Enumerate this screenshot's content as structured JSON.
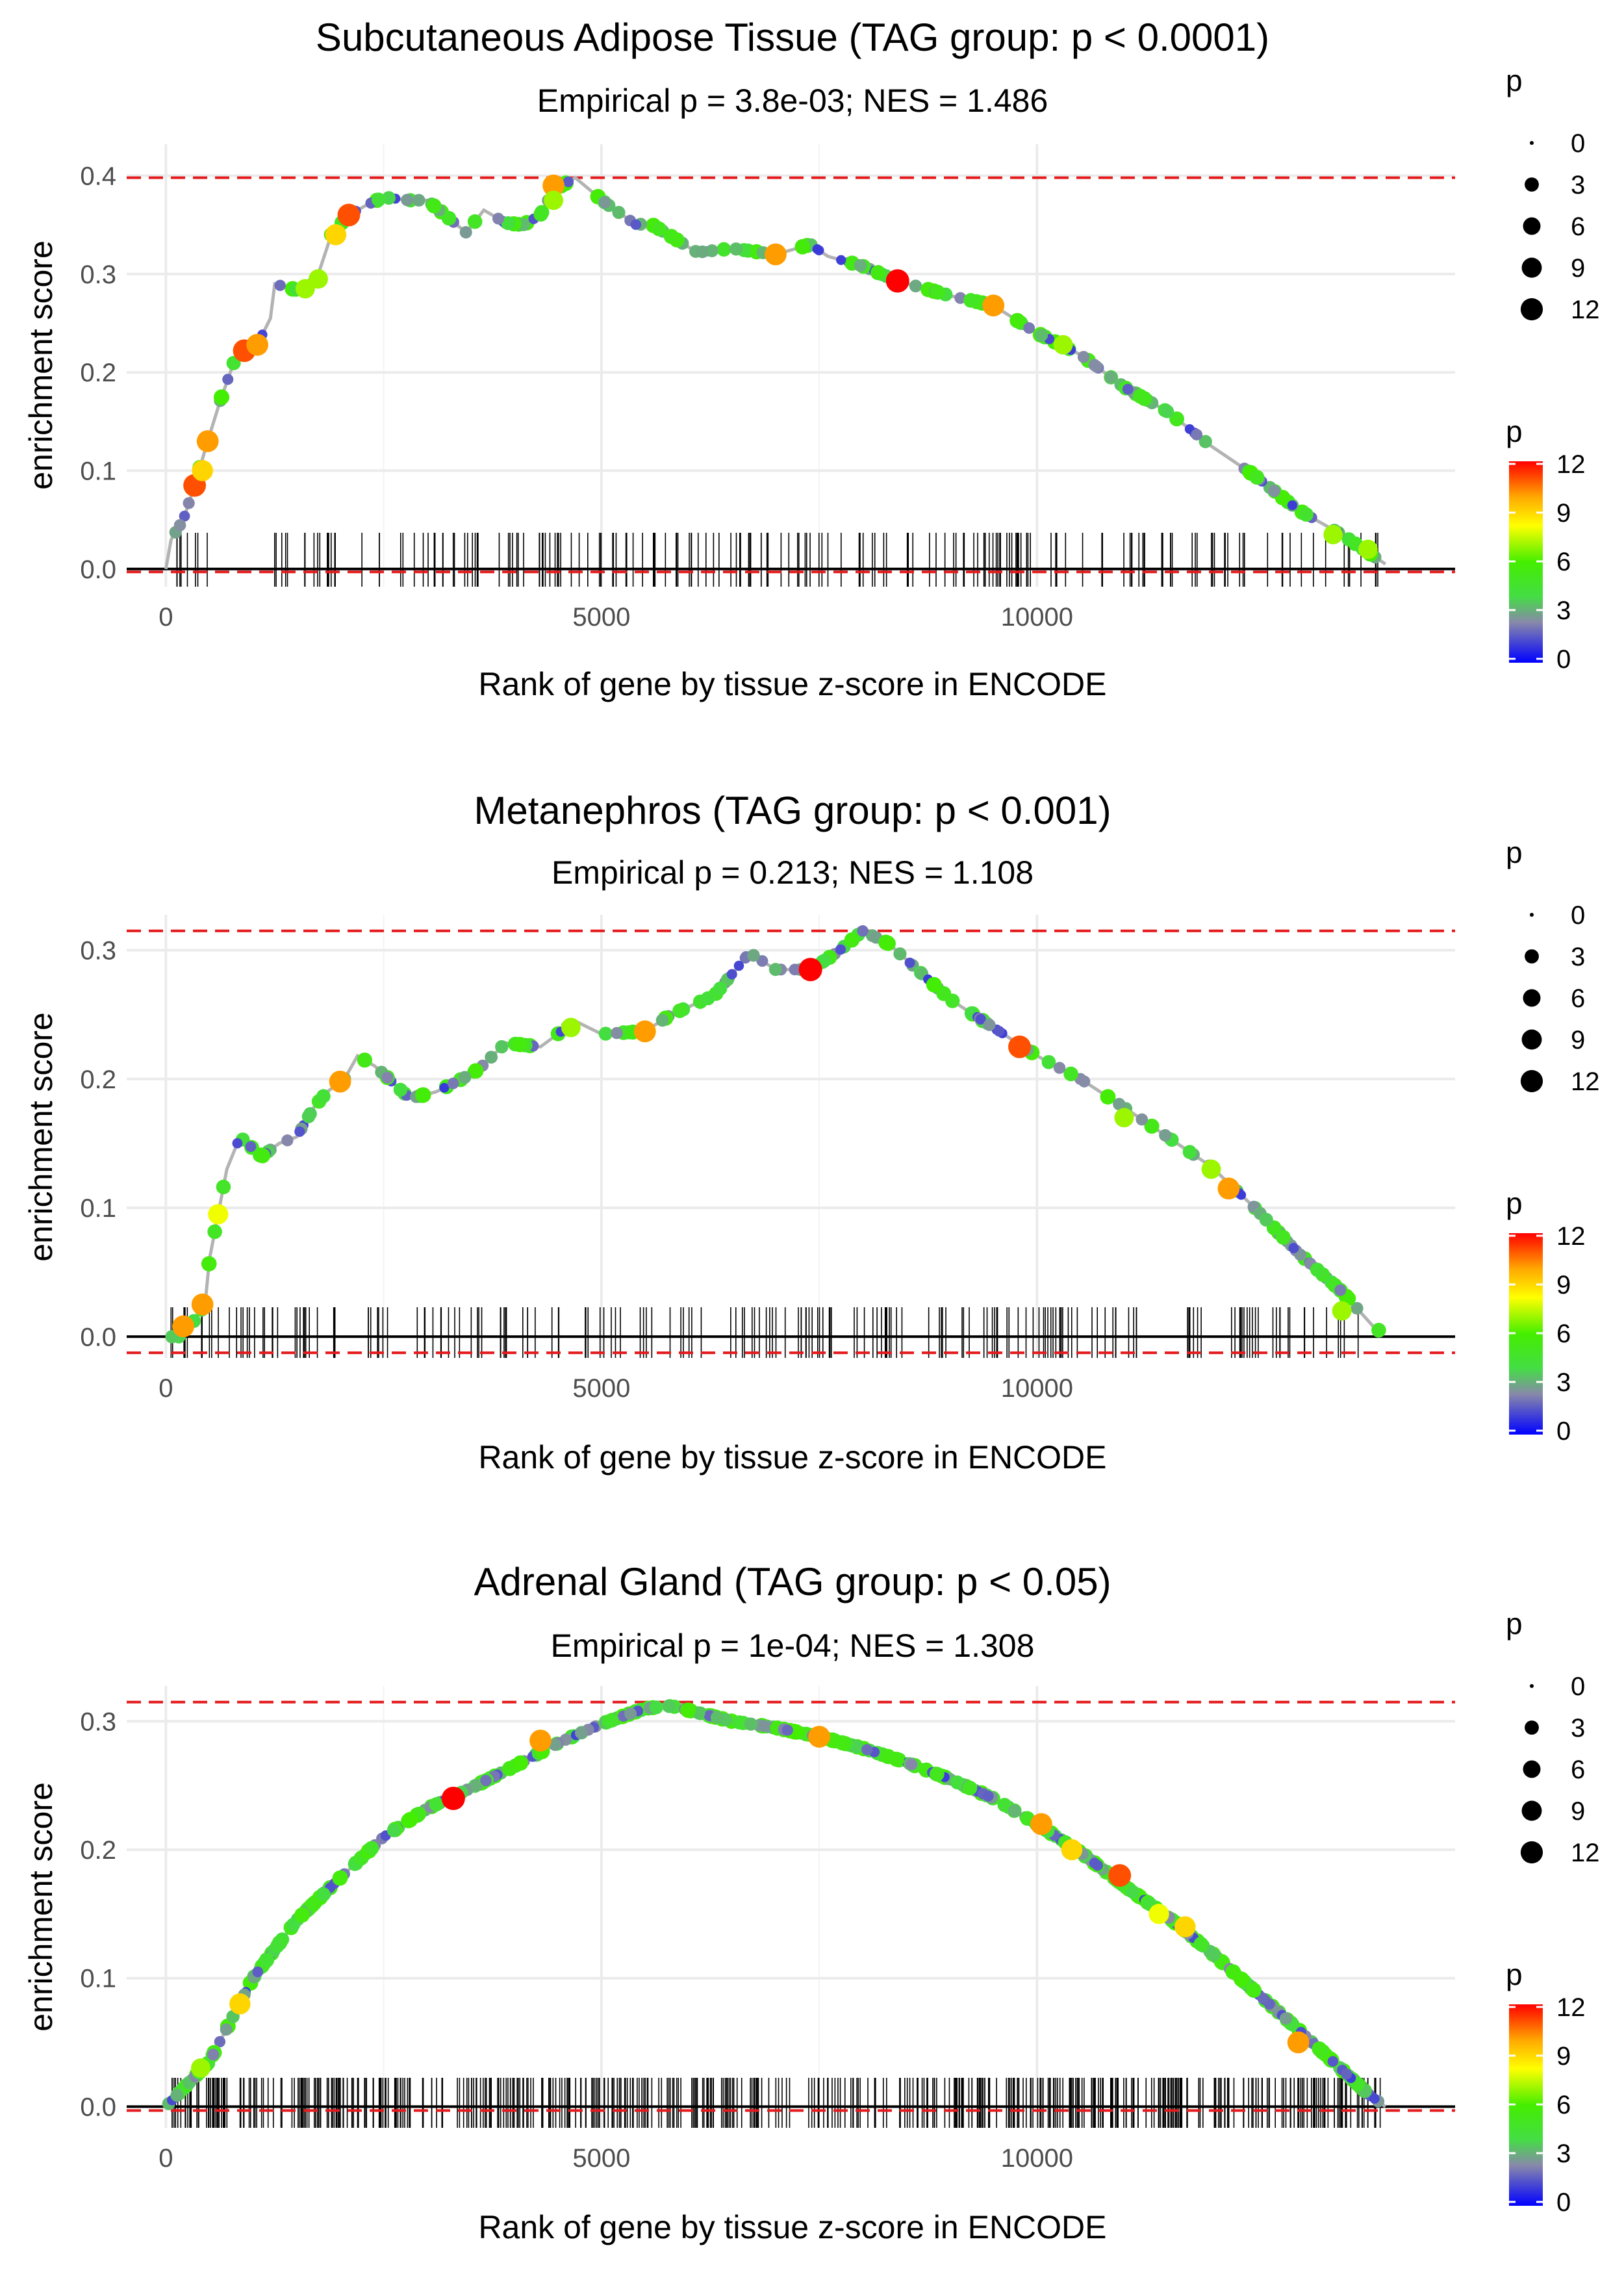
{
  "figure": {
    "legend_labels": {
      "size_title": "p",
      "color_title": "p"
    }
  },
  "chart_data": [
    {
      "type": "line",
      "title": "Subcutaneous Adipose Tissue (TAG group: p < 0.0001)",
      "subtitle": "Empirical p = 3.8e-03; NES = 1.486",
      "xlabel": "Rank of gene by tissue z-score in ENCODE",
      "ylabel": "enrichment score",
      "xlim": [
        -450,
        14800
      ],
      "ylim": [
        -0.018,
        0.432
      ],
      "x_ticks": [
        0,
        5000,
        10000
      ],
      "y_ticks": [
        0.0,
        0.1,
        0.2,
        0.3,
        0.4
      ],
      "y_tick_labels": [
        "0.0",
        "0.1",
        "0.2",
        "0.3",
        "0.4"
      ],
      "dashed_lines": [
        0.398,
        -0.003
      ],
      "curve": [
        [
          0,
          0
        ],
        [
          60,
          0.03
        ],
        [
          200,
          0.05
        ],
        [
          330,
          0.085
        ],
        [
          480,
          0.13
        ],
        [
          620,
          0.17
        ],
        [
          780,
          0.21
        ],
        [
          900,
          0.222
        ],
        [
          1050,
          0.228
        ],
        [
          1200,
          0.255
        ],
        [
          1250,
          0.29
        ],
        [
          1450,
          0.285
        ],
        [
          1600,
          0.282
        ],
        [
          1750,
          0.3
        ],
        [
          1900,
          0.34
        ],
        [
          2100,
          0.36
        ],
        [
          2300,
          0.37
        ],
        [
          2500,
          0.378
        ],
        [
          2800,
          0.375
        ],
        [
          3000,
          0.375
        ],
        [
          3450,
          0.342
        ],
        [
          3650,
          0.365
        ],
        [
          3900,
          0.352
        ],
        [
          4100,
          0.35
        ],
        [
          4300,
          0.36
        ],
        [
          4450,
          0.385
        ],
        [
          4700,
          0.398
        ],
        [
          5050,
          0.372
        ],
        [
          5400,
          0.35
        ],
        [
          5550,
          0.352
        ],
        [
          6100,
          0.322
        ],
        [
          6500,
          0.326
        ],
        [
          7000,
          0.32
        ],
        [
          7400,
          0.33
        ],
        [
          7600,
          0.318
        ],
        [
          8000,
          0.308
        ],
        [
          8400,
          0.293
        ],
        [
          9000,
          0.278
        ],
        [
          9500,
          0.268
        ],
        [
          10000,
          0.24
        ],
        [
          10500,
          0.218
        ],
        [
          11000,
          0.185
        ],
        [
          11500,
          0.16
        ],
        [
          12000,
          0.125
        ],
        [
          12500,
          0.095
        ],
        [
          13000,
          0.06
        ],
        [
          13500,
          0.035
        ],
        [
          14000,
          0.005
        ]
      ],
      "highlight_points": [
        [
          330,
          0.085,
          11
        ],
        [
          480,
          0.13,
          10
        ],
        [
          420,
          0.1,
          9
        ],
        [
          900,
          0.222,
          11
        ],
        [
          1050,
          0.228,
          10
        ],
        [
          1950,
          0.34,
          9
        ],
        [
          2100,
          0.36,
          11
        ],
        [
          4450,
          0.39,
          10
        ],
        [
          4450,
          0.375,
          7
        ],
        [
          1750,
          0.295,
          7
        ],
        [
          1600,
          0.285,
          7
        ],
        [
          7000,
          0.32,
          10
        ],
        [
          8400,
          0.293,
          12
        ],
        [
          9500,
          0.268,
          10
        ],
        [
          10300,
          0.228,
          7
        ],
        [
          13400,
          0.035,
          7
        ],
        [
          13800,
          0.02,
          7
        ]
      ],
      "p_scale": {
        "breaks": [
          0,
          3,
          6,
          9,
          12
        ]
      }
    },
    {
      "type": "line",
      "title": "Metanephros (TAG group: p < 0.001)",
      "subtitle": "Empirical p = 0.213; NES = 1.108",
      "xlabel": "Rank of gene by tissue z-score in ENCODE",
      "ylabel": "enrichment score",
      "xlim": [
        -450,
        14800
      ],
      "ylim": [
        -0.0165,
        0.3275
      ],
      "x_ticks": [
        0,
        5000,
        10000
      ],
      "y_ticks": [
        0.0,
        0.1,
        0.2,
        0.3
      ],
      "y_tick_labels": [
        "0.0",
        "0.1",
        "0.2",
        "0.3"
      ],
      "dashed_lines": [
        0.315,
        -0.0125
      ],
      "curve": [
        [
          0,
          0
        ],
        [
          150,
          0.0
        ],
        [
          300,
          0.01
        ],
        [
          450,
          0.025
        ],
        [
          500,
          0.06
        ],
        [
          600,
          0.095
        ],
        [
          700,
          0.13
        ],
        [
          850,
          0.155
        ],
        [
          1100,
          0.14
        ],
        [
          1300,
          0.15
        ],
        [
          1500,
          0.155
        ],
        [
          1700,
          0.178
        ],
        [
          1850,
          0.19
        ],
        [
          2050,
          0.2
        ],
        [
          2200,
          0.218
        ],
        [
          2400,
          0.21
        ],
        [
          2800,
          0.185
        ],
        [
          3100,
          0.19
        ],
        [
          3400,
          0.2
        ],
        [
          3600,
          0.208
        ],
        [
          3900,
          0.228
        ],
        [
          4300,
          0.225
        ],
        [
          4700,
          0.245
        ],
        [
          5000,
          0.235
        ],
        [
          5500,
          0.237
        ],
        [
          5800,
          0.25
        ],
        [
          6300,
          0.265
        ],
        [
          6700,
          0.298
        ],
        [
          7000,
          0.285
        ],
        [
          7400,
          0.285
        ],
        [
          7700,
          0.298
        ],
        [
          8000,
          0.315
        ],
        [
          8300,
          0.305
        ],
        [
          9000,
          0.262
        ],
        [
          9500,
          0.24
        ],
        [
          10000,
          0.218
        ],
        [
          10500,
          0.2
        ],
        [
          11000,
          0.178
        ],
        [
          11500,
          0.155
        ],
        [
          12000,
          0.132
        ],
        [
          12500,
          0.1
        ],
        [
          13000,
          0.065
        ],
        [
          13500,
          0.035
        ],
        [
          13900,
          0.005
        ]
      ],
      "highlight_points": [
        [
          200,
          0.008,
          10
        ],
        [
          420,
          0.025,
          10
        ],
        [
          600,
          0.095,
          8
        ],
        [
          2000,
          0.198,
          10
        ],
        [
          4650,
          0.24,
          7
        ],
        [
          5500,
          0.237,
          10
        ],
        [
          7400,
          0.285,
          12
        ],
        [
          9800,
          0.225,
          11
        ],
        [
          11000,
          0.17,
          7
        ],
        [
          12000,
          0.13,
          7
        ],
        [
          12200,
          0.115,
          10
        ],
        [
          13500,
          0.02,
          7
        ]
      ],
      "p_scale": {
        "breaks": [
          0,
          3,
          6,
          9,
          12
        ]
      }
    },
    {
      "type": "line",
      "title": "Adrenal Gland (TAG group: p < 0.05)",
      "subtitle": "Empirical p = 1e-04; NES = 1.308",
      "xlabel": "Rank of gene by tissue z-score in ENCODE",
      "ylabel": "enrichment score",
      "xlim": [
        -450,
        14800
      ],
      "ylim": [
        -0.0165,
        0.3275
      ],
      "x_ticks": [
        0,
        5000,
        10000
      ],
      "y_ticks": [
        0.0,
        0.1,
        0.2,
        0.3
      ],
      "y_tick_labels": [
        "0.0",
        "0.1",
        "0.2",
        "0.3"
      ],
      "dashed_lines": [
        0.315,
        -0.003
      ],
      "curve": [
        [
          0,
          0
        ],
        [
          500,
          0.035
        ],
        [
          1000,
          0.1
        ],
        [
          1500,
          0.145
        ],
        [
          2000,
          0.178
        ],
        [
          2500,
          0.21
        ],
        [
          3000,
          0.232
        ],
        [
          3500,
          0.248
        ],
        [
          4000,
          0.265
        ],
        [
          4500,
          0.283
        ],
        [
          5000,
          0.298
        ],
        [
          5500,
          0.31
        ],
        [
          5800,
          0.312
        ],
        [
          6500,
          0.3
        ],
        [
          7000,
          0.295
        ],
        [
          7500,
          0.288
        ],
        [
          8000,
          0.279
        ],
        [
          8500,
          0.268
        ],
        [
          9000,
          0.255
        ],
        [
          9500,
          0.24
        ],
        [
          10000,
          0.22
        ],
        [
          10500,
          0.198
        ],
        [
          11000,
          0.172
        ],
        [
          11500,
          0.148
        ],
        [
          12000,
          0.12
        ],
        [
          12500,
          0.09
        ],
        [
          13000,
          0.06
        ],
        [
          13400,
          0.035
        ],
        [
          13800,
          0.01
        ],
        [
          14000,
          0
        ]
      ],
      "highlight_points": [
        [
          400,
          0.03,
          7
        ],
        [
          850,
          0.08,
          9
        ],
        [
          3300,
          0.24,
          12
        ],
        [
          4300,
          0.285,
          10
        ],
        [
          7500,
          0.288,
          10
        ],
        [
          10050,
          0.22,
          10
        ],
        [
          10400,
          0.2,
          9
        ],
        [
          10950,
          0.18,
          11
        ],
        [
          11400,
          0.15,
          8
        ],
        [
          11700,
          0.14,
          9
        ],
        [
          13000,
          0.05,
          10
        ]
      ],
      "p_scale": {
        "breaks": [
          0,
          3,
          6,
          9,
          12
        ]
      }
    }
  ]
}
